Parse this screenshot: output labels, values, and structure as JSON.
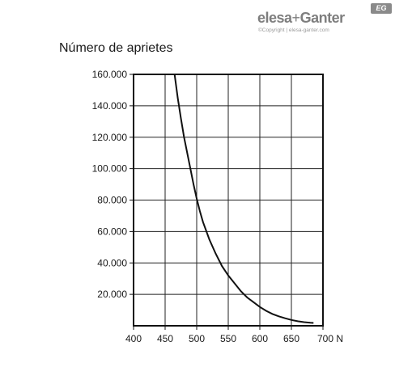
{
  "logo": {
    "brand_left": "elesa",
    "plus": "+",
    "brand_right": "Ganter",
    "badge": "EG",
    "copyright": "©Copyright | elesa-ganter.com"
  },
  "chart_data": {
    "type": "line",
    "title": "Número de aprietes",
    "xlabel": "",
    "ylabel": "",
    "x_unit": "N",
    "xlim": [
      400,
      700
    ],
    "ylim": [
      0,
      160000
    ],
    "xticks": [
      400,
      450,
      500,
      550,
      600,
      650,
      700
    ],
    "xtick_labels": [
      "400",
      "450",
      "500",
      "550",
      "600",
      "650",
      "700 N"
    ],
    "yticks": [
      20000,
      40000,
      60000,
      80000,
      100000,
      120000,
      140000,
      160000
    ],
    "ytick_labels": [
      "20.000",
      "40.000",
      "60.000",
      "80.000",
      "100.000",
      "120.000",
      "140.000",
      "160.000"
    ],
    "grid": true,
    "series": [
      {
        "x": [
          465,
          470,
          475,
          480,
          485,
          490,
          495,
          500,
          505,
          510,
          520,
          530,
          540,
          550,
          560,
          570,
          580,
          590,
          600,
          610,
          620,
          630,
          640,
          650,
          660,
          670,
          680,
          685
        ],
        "y": [
          160000,
          145000,
          132000,
          120000,
          110000,
          100000,
          90000,
          81000,
          73000,
          66000,
          55000,
          46000,
          38000,
          32000,
          27000,
          22000,
          18000,
          15000,
          12000,
          9500,
          7500,
          6000,
          4800,
          3700,
          2900,
          2300,
          1900,
          1800
        ]
      }
    ],
    "colors": {
      "line": "#111111",
      "grid": "#222222"
    }
  }
}
